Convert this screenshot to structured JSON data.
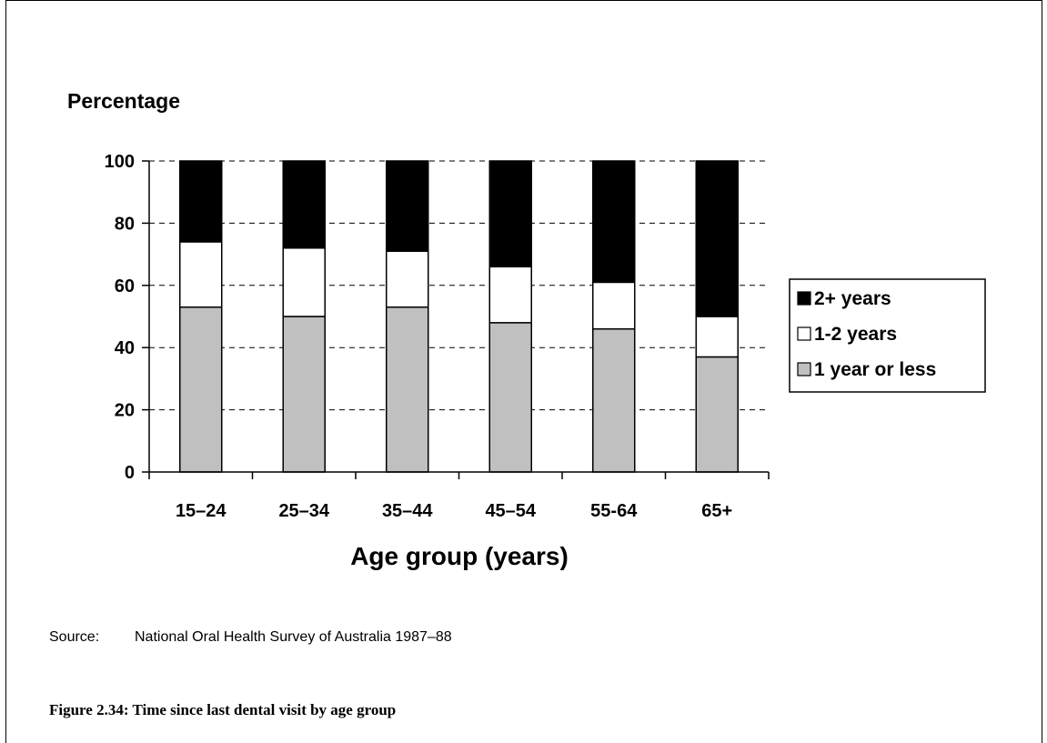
{
  "chart_data": {
    "type": "bar",
    "stacked": true,
    "ylabel": "Percentage",
    "xlabel": "Age group (years)",
    "ylim": [
      0,
      100
    ],
    "yticks": [
      0,
      20,
      40,
      60,
      80,
      100
    ],
    "grid": "dashed horizontal",
    "legend_position": "right",
    "categories": [
      "15–24",
      "25–34",
      "35–44",
      "45–54",
      "55-64",
      "65+"
    ],
    "series": [
      {
        "name": "1 year or less",
        "color": "#c0c0c0",
        "values": [
          53,
          50,
          53,
          48,
          46,
          37
        ]
      },
      {
        "name": "1-2 years",
        "color": "#ffffff",
        "values": [
          21,
          22,
          18,
          18,
          15,
          13
        ]
      },
      {
        "name": "2+ years",
        "color": "#000000",
        "values": [
          26,
          28,
          29,
          34,
          39,
          50
        ]
      }
    ],
    "legend_order": [
      2,
      1,
      0
    ]
  },
  "source": {
    "label": "Source:",
    "text": "National Oral Health Survey of Australia 1987–88"
  },
  "caption": "Figure 2.34: Time since last dental visit by age group"
}
